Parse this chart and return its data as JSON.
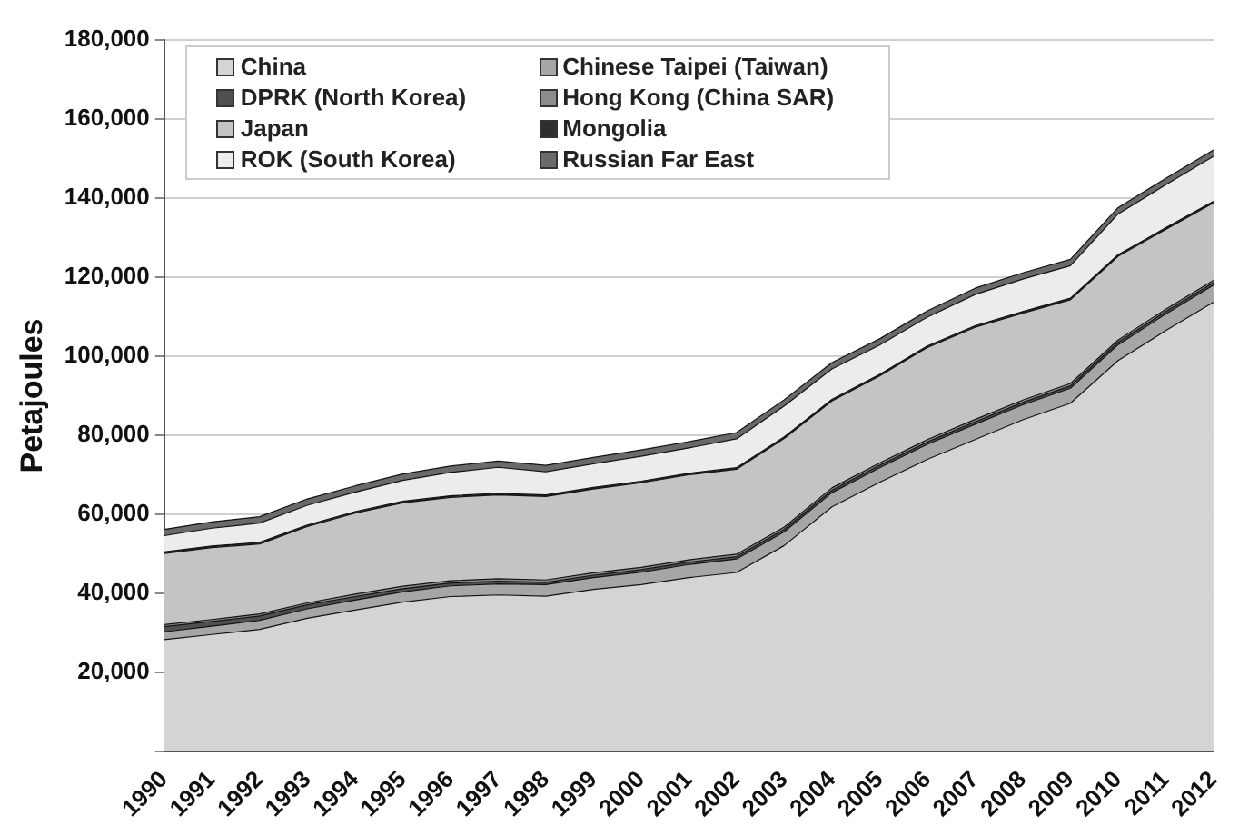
{
  "chart_data": {
    "type": "area",
    "stacked": true,
    "ylabel": "Petajoules",
    "legend": "top left",
    "grid": "y",
    "line_style": "solid",
    "marker": "none",
    "categories": [
      "1990",
      "1991",
      "1992",
      "1993",
      "1994",
      "1995",
      "1996",
      "1997",
      "1998",
      "1999",
      "2000",
      "2001",
      "2002",
      "2003",
      "2004",
      "2005",
      "2006",
      "2007",
      "2008",
      "2009",
      "2010",
      "2011",
      "2012"
    ],
    "ylim": [
      0,
      180000
    ],
    "yticks": [
      {
        "value": 0,
        "label": null
      },
      {
        "value": 20000,
        "label": "20,000"
      },
      {
        "value": 40000,
        "label": "40,000"
      },
      {
        "value": 60000,
        "label": "60,000"
      },
      {
        "value": 80000,
        "label": "80,000"
      },
      {
        "value": 100000,
        "label": "100,000"
      },
      {
        "value": 120000,
        "label": "120,000"
      },
      {
        "value": 140000,
        "label": "140,000"
      },
      {
        "value": 160000,
        "label": "160,000"
      },
      {
        "value": 180000,
        "label": "180,000"
      }
    ],
    "series": [
      {
        "name": "China",
        "color": "#d4d4d4",
        "values": [
          28300,
          29600,
          30900,
          33700,
          35800,
          37800,
          39200,
          39600,
          39300,
          41000,
          42200,
          44000,
          45300,
          52100,
          61900,
          68100,
          73900,
          78900,
          83900,
          88100,
          98900,
          106500,
          113700
        ]
      },
      {
        "name": "Chinese Taipei (Taiwan)",
        "color": "#a6a6a6",
        "values": [
          2000,
          2100,
          2300,
          2400,
          2500,
          2600,
          2700,
          2800,
          2900,
          3000,
          3200,
          3300,
          3400,
          3500,
          3600,
          3700,
          3800,
          3900,
          3800,
          3800,
          4000,
          4200,
          4300
        ]
      },
      {
        "name": "DPRK (North Korea)",
        "color": "#505050",
        "values": [
          1300,
          1200,
          1100,
          1000,
          900,
          800,
          700,
          700,
          600,
          600,
          600,
          600,
          600,
          600,
          600,
          600,
          600,
          600,
          600,
          600,
          600,
          600,
          600
        ]
      },
      {
        "name": "Hong Kong (China SAR)",
        "color": "#8c8c8c",
        "values": [
          500,
          500,
          500,
          500,
          600,
          600,
          600,
          600,
          600,
          600,
          600,
          600,
          600,
          600,
          600,
          600,
          600,
          600,
          600,
          600,
          600,
          600,
          600
        ]
      },
      {
        "name": "Japan",
        "color": "#c4c4c4",
        "values": [
          18000,
          18200,
          17700,
          19300,
          20500,
          21100,
          21100,
          21200,
          21100,
          21200,
          21400,
          21500,
          21500,
          22400,
          22000,
          22000,
          23300,
          23300,
          22000,
          21200,
          21200,
          20200,
          19600
        ]
      },
      {
        "name": "Mongolia",
        "color": "#2e2e2e",
        "values": [
          400,
          400,
          400,
          400,
          400,
          400,
          400,
          400,
          400,
          400,
          400,
          400,
          400,
          400,
          400,
          400,
          400,
          400,
          400,
          400,
          400,
          400,
          400
        ]
      },
      {
        "name": "ROK (South Korea)",
        "color": "#ececec",
        "values": [
          4100,
          4500,
          4900,
          5000,
          4900,
          5300,
          5900,
          6600,
          5900,
          6000,
          6300,
          6400,
          7300,
          7800,
          7700,
          7400,
          7300,
          7900,
          8200,
          8200,
          10300,
          10900,
          11400
        ]
      },
      {
        "name": "Russian Far East",
        "color": "#6a6a6a",
        "values": [
          1600,
          1600,
          1600,
          1600,
          1600,
          1600,
          1600,
          1600,
          1600,
          1600,
          1600,
          1600,
          1600,
          1600,
          1600,
          1600,
          1600,
          1600,
          1600,
          1600,
          1600,
          1600,
          1600
        ]
      }
    ]
  }
}
